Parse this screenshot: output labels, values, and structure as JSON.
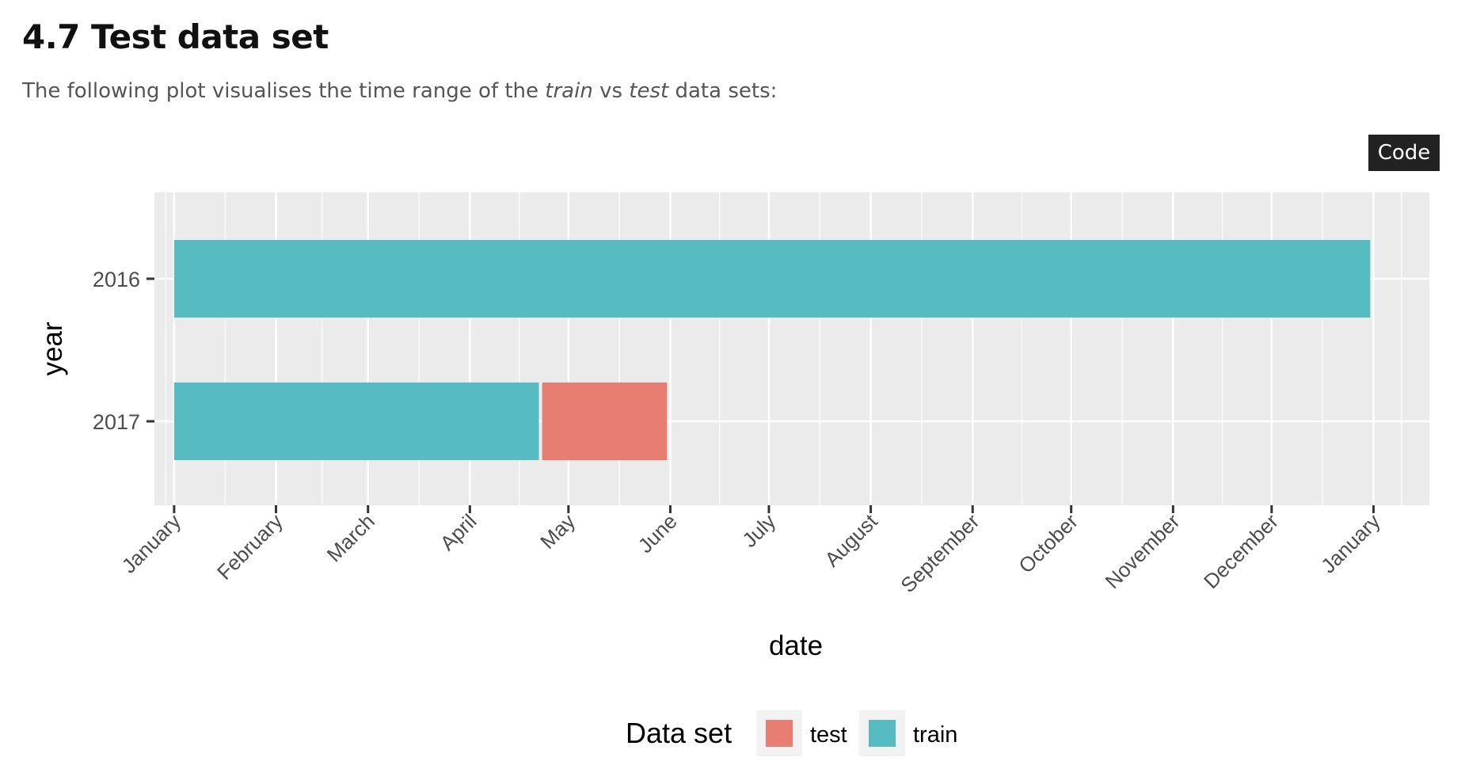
{
  "section": {
    "number_title": "4.7 Test data set",
    "intro_before": "The following plot visualises the time range of the ",
    "intro_train": "train",
    "intro_middle": " vs ",
    "intro_test": "test",
    "intro_after": " data sets:"
  },
  "code_button": {
    "label": "Code"
  },
  "colors": {
    "train": "#56bcc2",
    "test": "#e87d72",
    "panel": "#ebebeb",
    "grid": "#ffffff",
    "axis_text": "#4d4d4d"
  },
  "chart_data": {
    "type": "bar",
    "orientation": "horizontal",
    "stacked": true,
    "xlabel": "date",
    "ylabel": "year",
    "x_scale": "date (month of year)",
    "xlim": [
      "2016-12-26",
      "2018-01-18"
    ],
    "x_ticks": [
      {
        "date": "2017-01-01",
        "label": "January"
      },
      {
        "date": "2017-02-01",
        "label": "February"
      },
      {
        "date": "2017-03-01",
        "label": "March"
      },
      {
        "date": "2017-04-01",
        "label": "April"
      },
      {
        "date": "2017-05-01",
        "label": "May"
      },
      {
        "date": "2017-06-01",
        "label": "June"
      },
      {
        "date": "2017-07-01",
        "label": "July"
      },
      {
        "date": "2017-08-01",
        "label": "August"
      },
      {
        "date": "2017-09-01",
        "label": "September"
      },
      {
        "date": "2017-10-01",
        "label": "October"
      },
      {
        "date": "2017-11-01",
        "label": "November"
      },
      {
        "date": "2017-12-01",
        "label": "December"
      },
      {
        "date": "2018-01-01",
        "label": "January"
      }
    ],
    "categories": [
      "2016",
      "2017"
    ],
    "series": [
      {
        "name": "train",
        "color": "#56bcc2",
        "segments": [
          {
            "category": "2016",
            "start": "2017-01-01",
            "end": "2017-12-31"
          },
          {
            "category": "2017",
            "start": "2017-01-01",
            "end": "2017-04-22"
          }
        ]
      },
      {
        "name": "test",
        "color": "#e87d72",
        "segments": [
          {
            "category": "2017",
            "start": "2017-04-23",
            "end": "2017-05-31"
          }
        ]
      }
    ],
    "legend": {
      "title": "Data set",
      "position": "bottom",
      "entries": [
        "test",
        "train"
      ]
    },
    "grid": true
  }
}
